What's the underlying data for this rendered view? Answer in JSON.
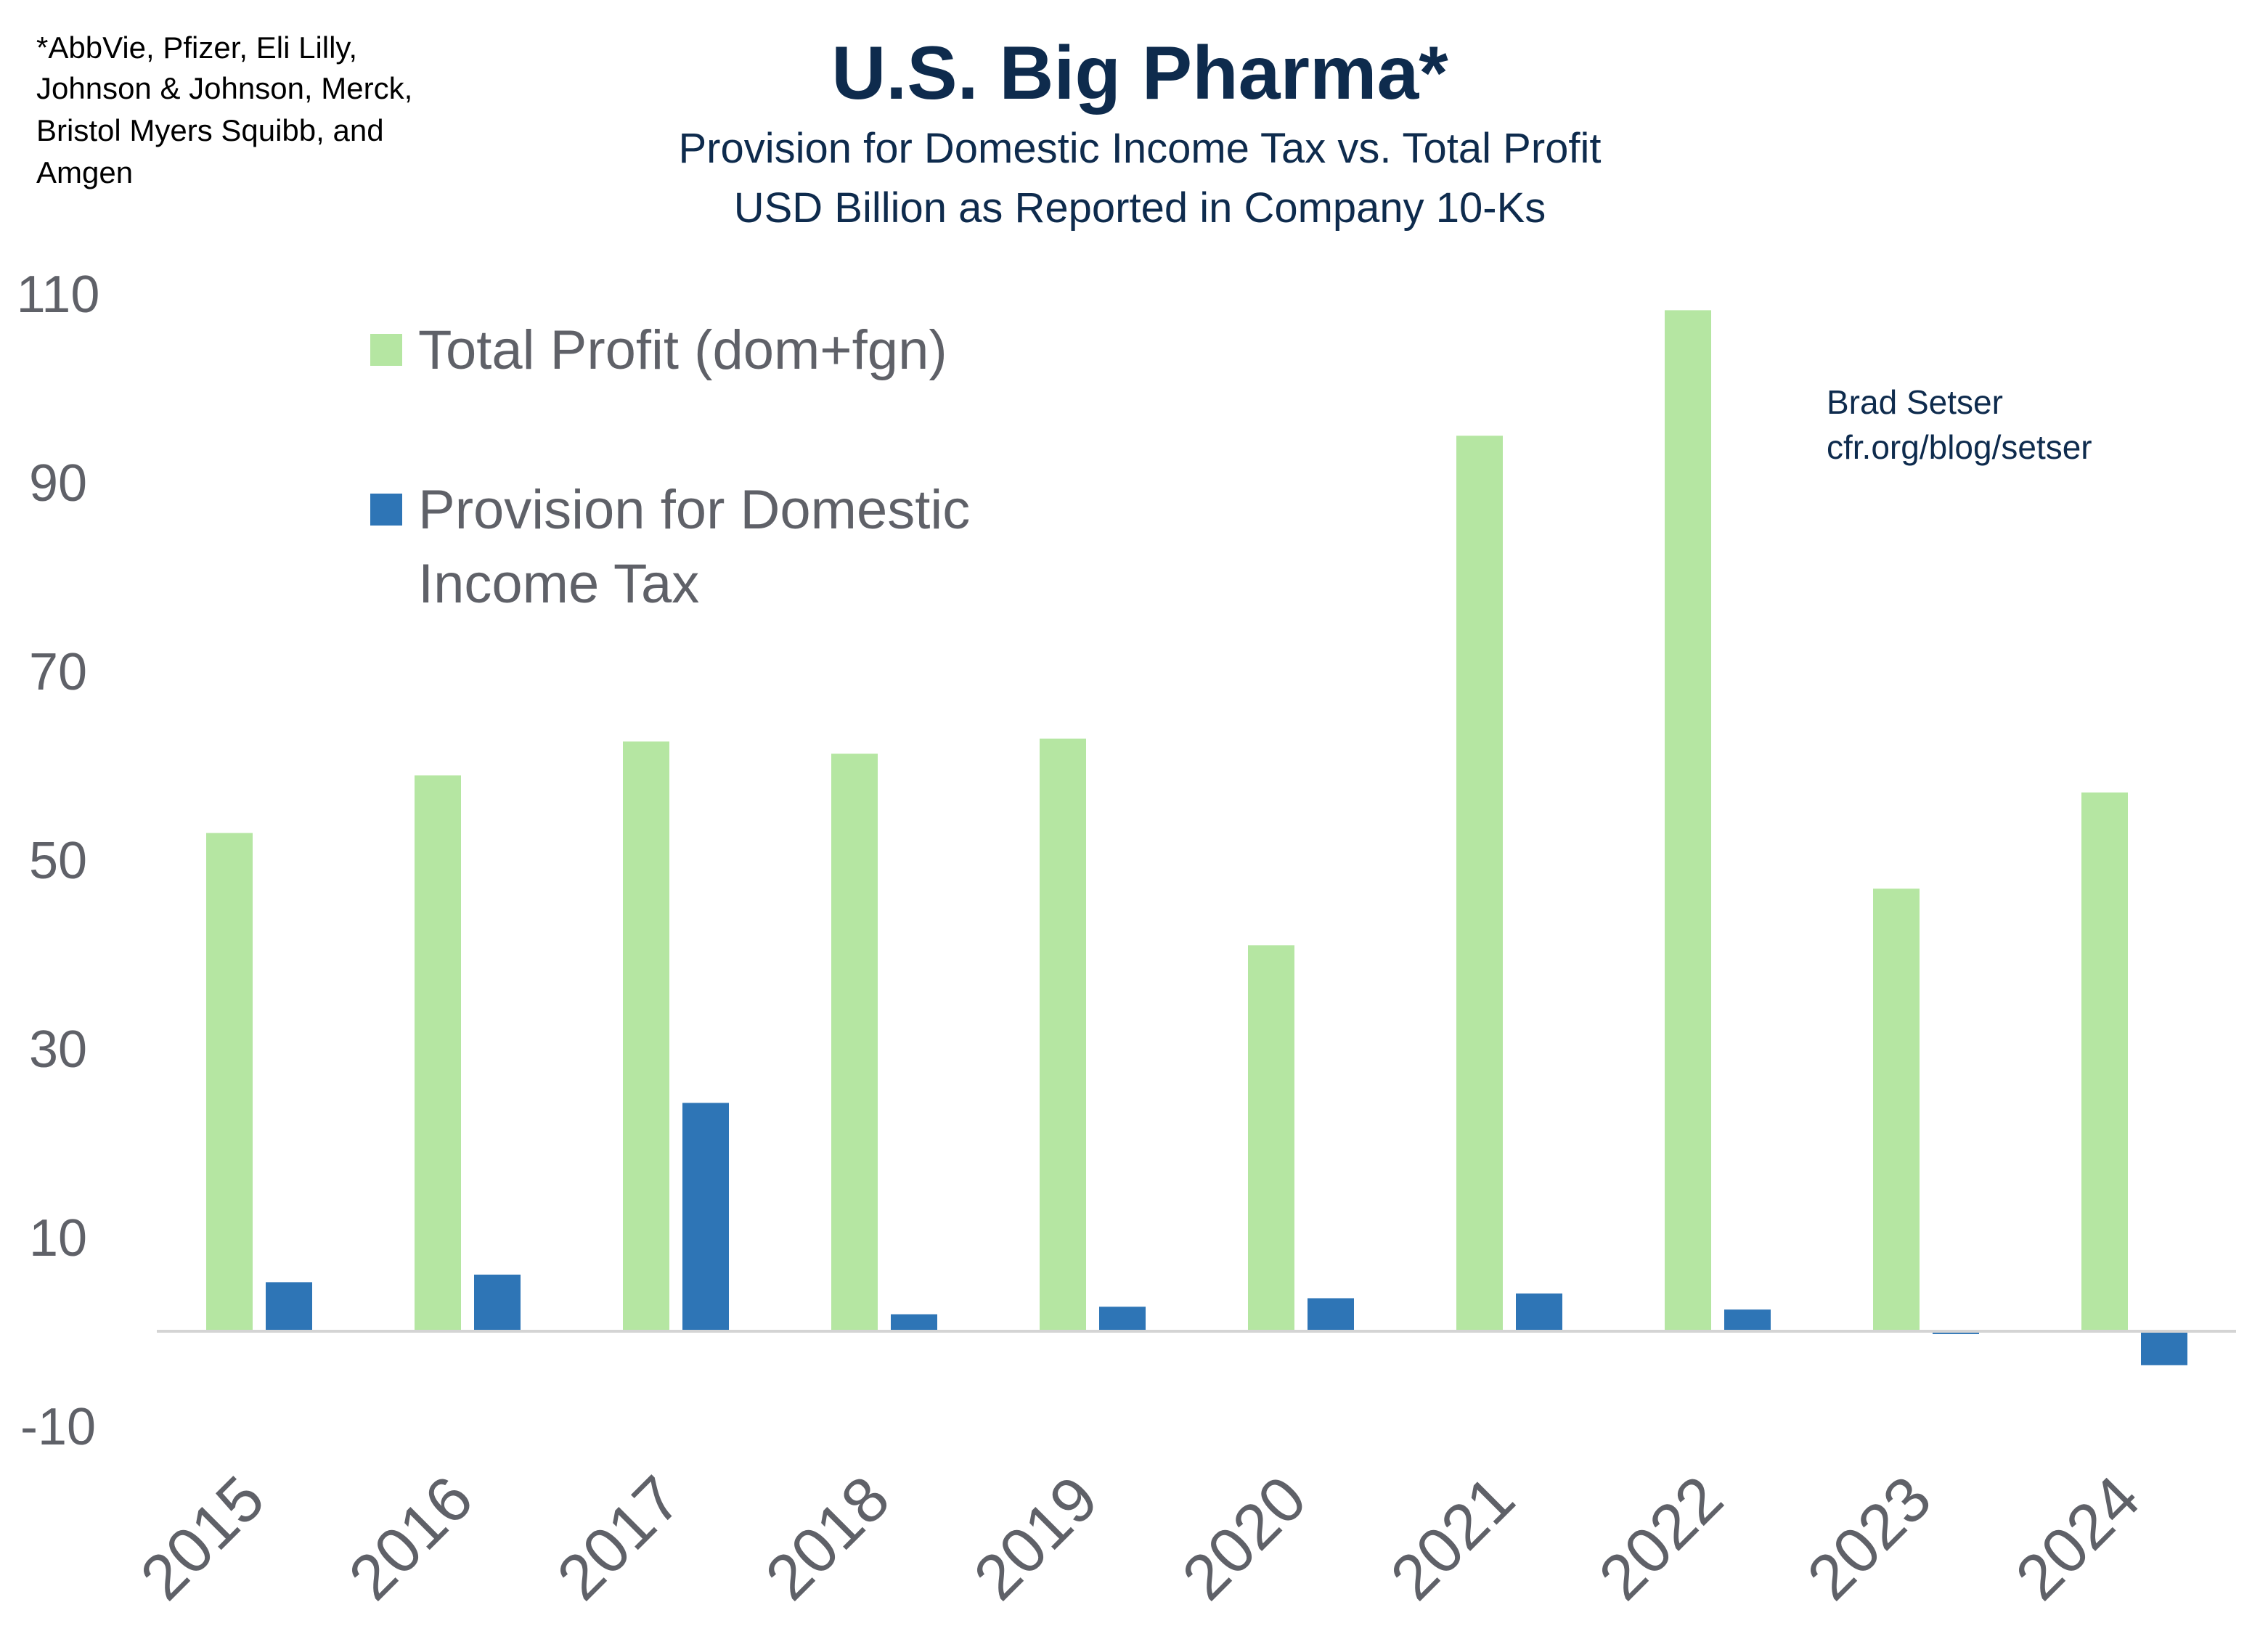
{
  "footnote": [
    "*AbbVie, Pfizer, Eli Lilly,",
    "Johnson & Johnson, Merck,",
    "Bristol Myers Squibb, and",
    "Amgen"
  ],
  "author": [
    "Brad Setser",
    "cfr.org/blog/setser"
  ],
  "colors": {
    "title": "#0e2b4d",
    "total_profit": "#b5e6a2",
    "tax": "#2e75b6",
    "axis_text": "#5f6168",
    "baseline": "#d4d4d4"
  },
  "chart_data": {
    "type": "bar",
    "title": "U.S. Big Pharma*",
    "subtitle": [
      "Provision for Domestic Income Tax vs. Total Profit",
      "USD Billion as Reported in Company 10-Ks"
    ],
    "categories": [
      "2015",
      "2016",
      "2017",
      "2018",
      "2019",
      "2020",
      "2021",
      "2022",
      "2023",
      "2024"
    ],
    "series": [
      {
        "name": "Total Profit (dom+fgn)",
        "values": [
          52.8,
          58.9,
          62.5,
          61.2,
          62.8,
          40.9,
          94.9,
          108.2,
          46.9,
          57.1
        ]
      },
      {
        "name": "Provision for Domestic Income Tax",
        "name_lines": [
          "Provision for Domestic",
          "Income Tax"
        ],
        "values": [
          5.2,
          6.0,
          24.2,
          1.8,
          2.6,
          3.5,
          4.0,
          2.3,
          -0.3,
          -3.6
        ]
      }
    ],
    "yticks": [
      110,
      90,
      70,
      50,
      30,
      10,
      -10
    ],
    "ylim": [
      -10,
      110
    ],
    "grid": false,
    "legend_placement": "top-left"
  }
}
